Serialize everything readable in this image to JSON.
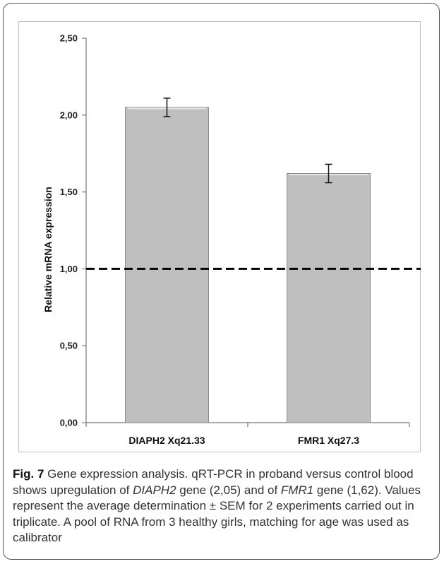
{
  "chart_data": {
    "type": "bar",
    "categories": [
      "DIAPH2 Xq21.33",
      "FMR1 Xq27.3"
    ],
    "values": [
      2.05,
      1.62
    ],
    "errors": [
      0.06,
      0.06
    ],
    "ylabel": "Relative mRNA expression",
    "ylim": [
      0,
      2.5
    ],
    "yticks": [
      "0,00",
      "0,50",
      "1,00",
      "1,50",
      "2,00",
      "2,50"
    ],
    "reference_line": 1.0,
    "bar_color": "#bfbfbf",
    "grid": false
  },
  "caption": {
    "label": "Fig. 7",
    "part1": " Gene expression analysis. qRT-PCR in proband versus control blood shows upregulation of ",
    "gene1": "DIAPH2",
    "part2": " gene (2,05) and of ",
    "gene2": "FMR1",
    "part3": " gene (1,62). Values represent the average determination ± SEM for 2 experiments carried out in triplicate. A pool of RNA from 3 healthy girls, matching for age was used as calibrator"
  }
}
